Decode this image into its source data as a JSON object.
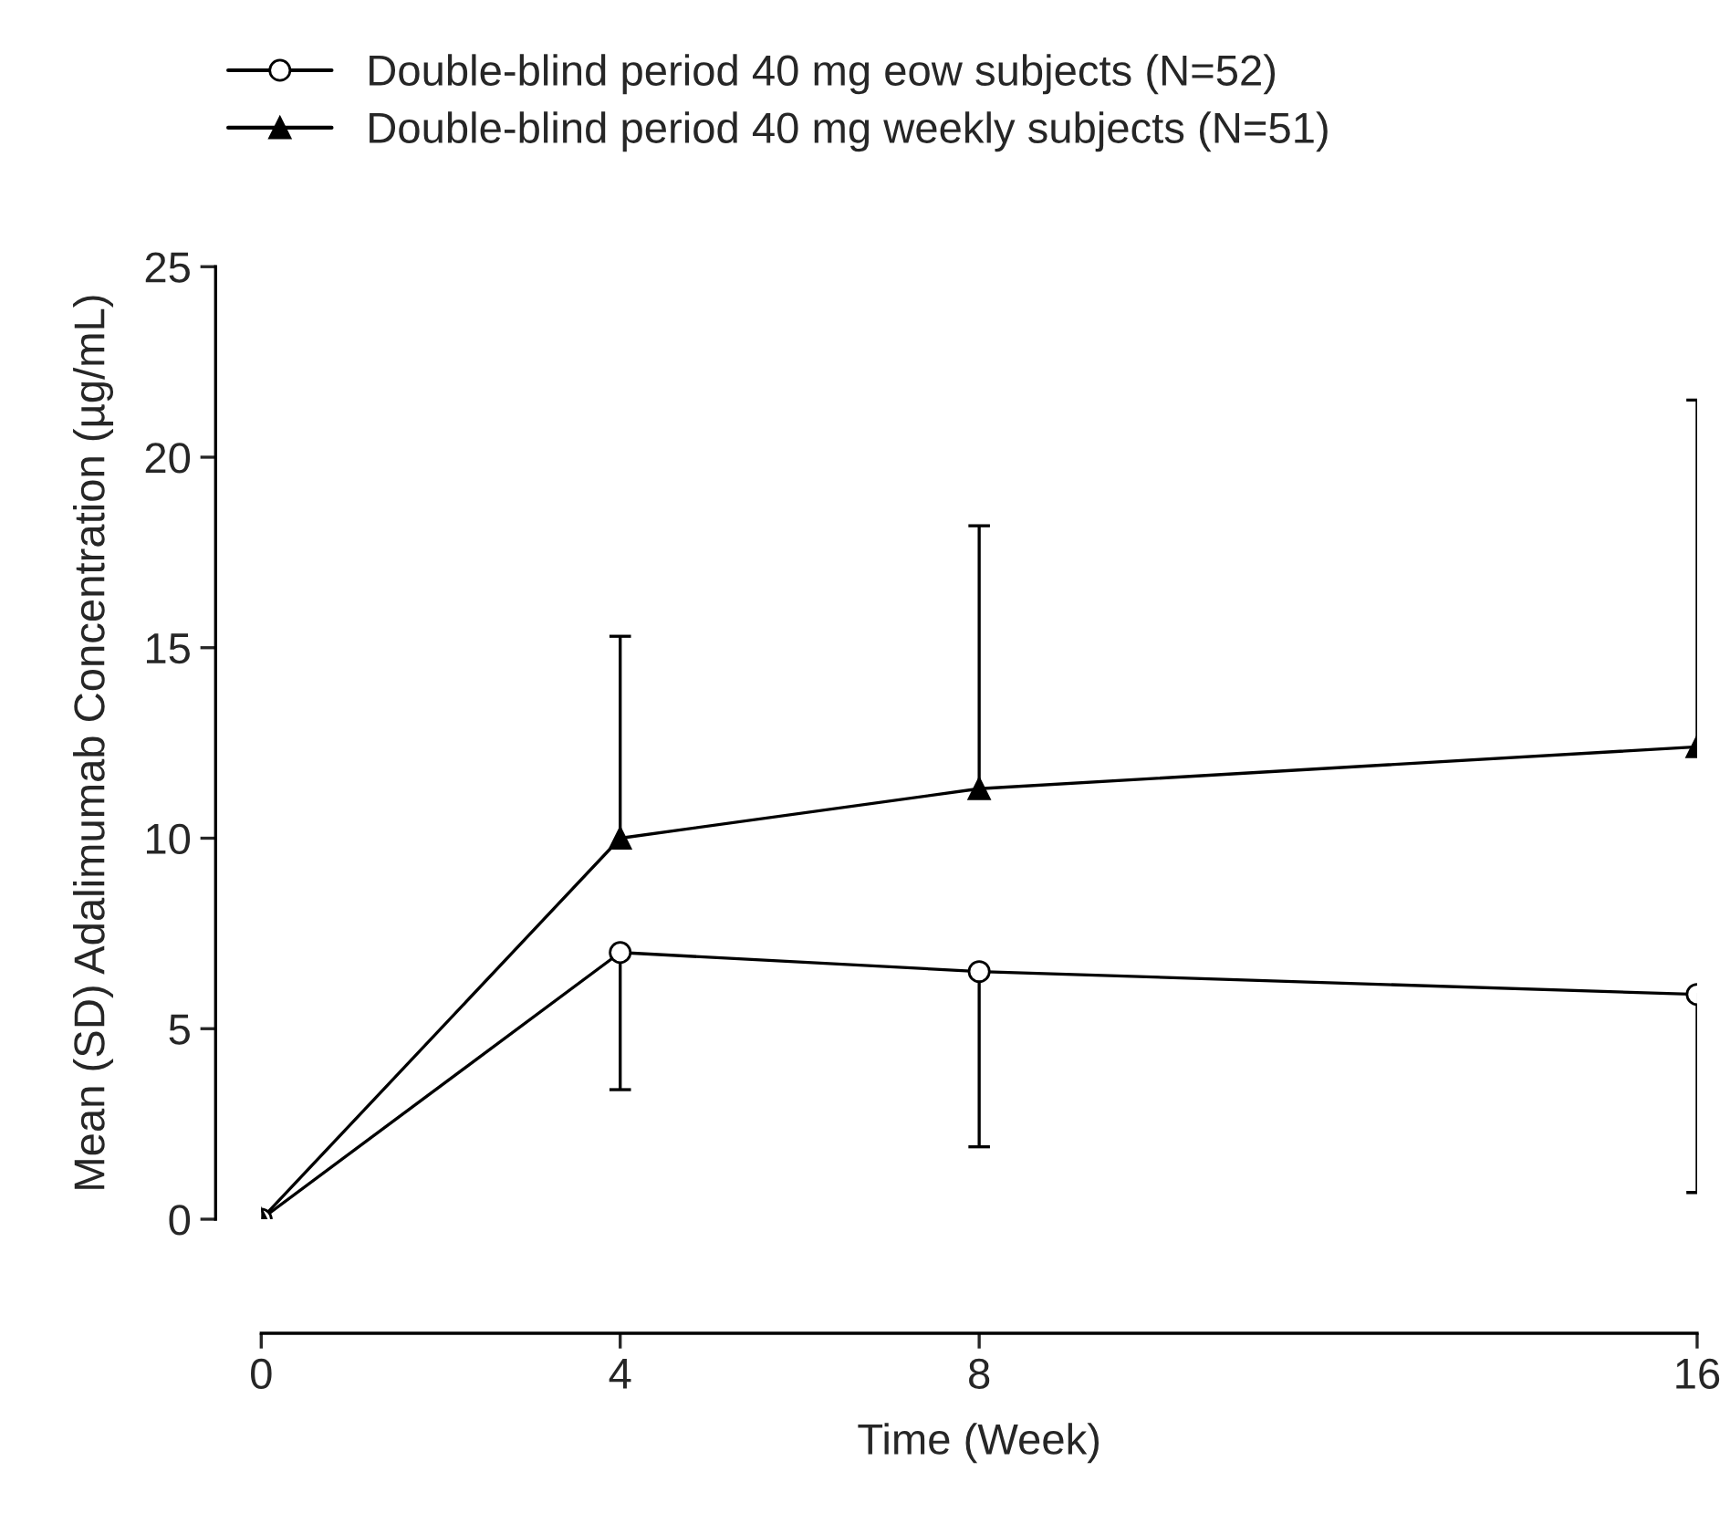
{
  "chart_data": {
    "type": "line",
    "xlabel": "Time (Week)",
    "ylabel": "Mean (SD) Adalimumab Concentration (µg/mL)",
    "x": [
      0,
      4,
      8,
      16
    ],
    "xlim": [
      0,
      16
    ],
    "xticks": [
      0,
      4,
      8,
      16
    ],
    "ylim": [
      0,
      25
    ],
    "yticks": [
      0,
      5,
      10,
      15,
      20,
      25
    ],
    "grid": false,
    "legend": "top left",
    "series": [
      {
        "name": "Double-blind period 40 mg eow subjects (N=52)",
        "color": "#000000",
        "marker": "circle",
        "values": [
          0,
          7.0,
          6.5,
          5.9
        ],
        "errors": [
          null,
          [
            3.4,
            7.0
          ],
          [
            1.9,
            6.5
          ],
          [
            0.7,
            5.9
          ]
        ]
      },
      {
        "name": "Double-blind period 40 mg weekly subjects (N=51)",
        "color": "#000000",
        "marker": "triangle",
        "values": [
          0,
          10.0,
          11.3,
          12.4
        ],
        "errors": [
          null,
          [
            10.0,
            15.3
          ],
          [
            11.3,
            18.2
          ],
          [
            12.4,
            21.5
          ]
        ]
      }
    ]
  }
}
